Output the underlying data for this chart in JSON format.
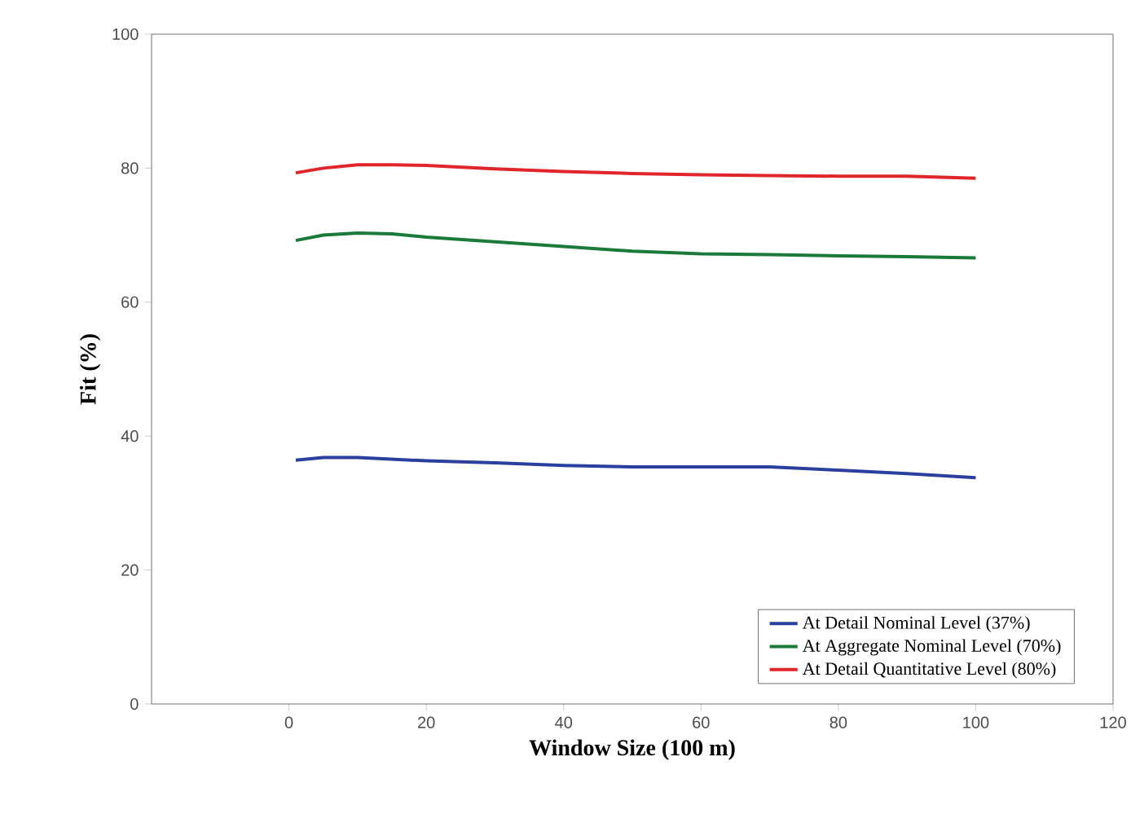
{
  "chart_data": {
    "type": "line",
    "xlabel": "Window Size (100 m)",
    "ylabel": "Fit (%)",
    "xlim": [
      -20,
      120
    ],
    "ylim": [
      0,
      100
    ],
    "xticks": [
      0,
      20,
      40,
      60,
      80,
      100,
      120
    ],
    "yticks": [
      0,
      20,
      40,
      60,
      80,
      100
    ],
    "legend": "bottom right",
    "grid": false,
    "marker": "none",
    "line_style": "solid",
    "series": [
      {
        "name": "At Detail Nominal Level (37%)",
        "color": "#2b3f9e",
        "x": [
          1,
          5,
          10,
          20,
          30,
          40,
          50,
          60,
          70,
          80,
          90,
          100
        ],
        "values": [
          36.4,
          36.8,
          36.8,
          36.3,
          36,
          35.6,
          35.4,
          35.4,
          35.4,
          34.9,
          34.4,
          33.8
        ]
      },
      {
        "name": "At Aggregate Nominal Level (70%)",
        "color": "#1a7a3a",
        "x": [
          1,
          5,
          10,
          15,
          20,
          30,
          40,
          50,
          60,
          70,
          80,
          90,
          100
        ],
        "values": [
          69.2,
          70,
          70.3,
          70.2,
          69.7,
          69,
          68.3,
          67.6,
          67.2,
          67.1,
          66.9,
          66.8,
          66.6
        ]
      },
      {
        "name": "At Detail Quantitative Level (80%)",
        "color": "#e0252b",
        "x": [
          1,
          5,
          10,
          15,
          20,
          30,
          40,
          50,
          60,
          70,
          80,
          90,
          100
        ],
        "values": [
          79.3,
          80,
          80.5,
          80.5,
          80.4,
          79.9,
          79.5,
          79.2,
          79,
          78.9,
          78.8,
          78.8,
          78.5
        ]
      }
    ]
  }
}
